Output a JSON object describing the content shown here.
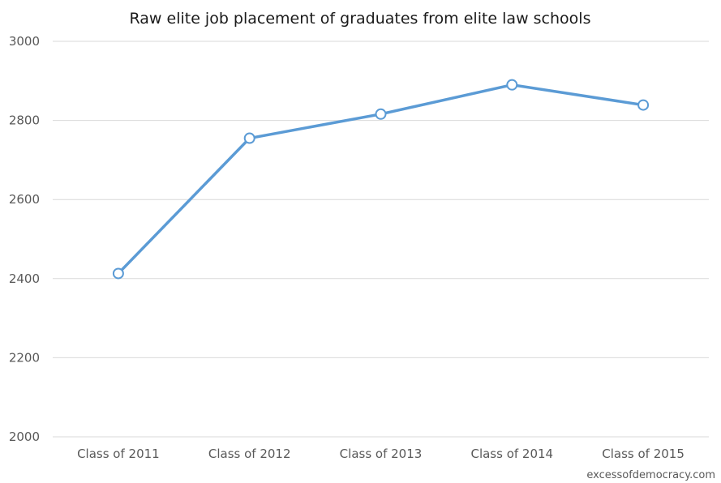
{
  "chart_data": {
    "type": "line",
    "title": "Raw elite job placement of graduates from elite law schools",
    "xlabel": "",
    "ylabel": "",
    "categories": [
      "Class of 2011",
      "Class of 2012",
      "Class of 2013",
      "Class of 2014",
      "Class of 2015"
    ],
    "series": [
      {
        "values": [
          2413,
          2755,
          2816,
          2890,
          2839
        ]
      }
    ],
    "ylim": [
      2000,
      3000
    ],
    "yticks": [
      2000,
      2200,
      2400,
      2600,
      2800,
      3000
    ],
    "grid": true,
    "legend": "none",
    "line_color": "#5b9bd5",
    "grid_color": "#d9d9d9"
  },
  "credit": "excessofdemocracy.com"
}
